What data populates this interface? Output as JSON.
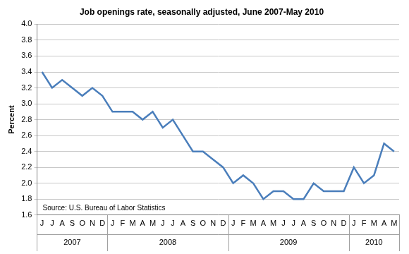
{
  "chart_data": {
    "type": "line",
    "title": "Job openings rate, seasonally adjusted, June 2007-May 2010",
    "y_label": "Percent",
    "annotation": "Source: U.S. Bureau of Labor Statistics",
    "categories": [
      "J",
      "J",
      "A",
      "S",
      "O",
      "N",
      "D",
      "J",
      "F",
      "M",
      "A",
      "M",
      "J",
      "J",
      "A",
      "S",
      "O",
      "N",
      "D",
      "J",
      "F",
      "M",
      "A",
      "M",
      "J",
      "J",
      "A",
      "S",
      "O",
      "N",
      "D",
      "J",
      "F",
      "M",
      "A",
      "M"
    ],
    "years": [
      "2007",
      "2007",
      "2007",
      "2007",
      "2007",
      "2007",
      "2007",
      "2008",
      "2008",
      "2008",
      "2008",
      "2008",
      "2008",
      "2008",
      "2008",
      "2008",
      "2008",
      "2008",
      "2008",
      "2009",
      "2009",
      "2009",
      "2009",
      "2009",
      "2009",
      "2009",
      "2009",
      "2009",
      "2009",
      "2009",
      "2009",
      "2010",
      "2010",
      "2010",
      "2010",
      "2010"
    ],
    "values": [
      3.4,
      3.2,
      3.3,
      3.2,
      3.1,
      3.2,
      3.1,
      2.9,
      2.9,
      2.9,
      2.8,
      2.9,
      2.7,
      2.8,
      2.6,
      2.4,
      2.4,
      2.3,
      2.2,
      2.0,
      2.1,
      2.0,
      1.8,
      1.9,
      1.9,
      1.8,
      1.8,
      2.0,
      1.9,
      1.9,
      1.9,
      2.2,
      2.0,
      2.1,
      2.5,
      2.4
    ],
    "color": "#4a7ebb",
    "marker": "none",
    "line_style": "solid",
    "ylim": [
      1.6,
      4.0
    ],
    "yticks": [
      1.6,
      1.8,
      {
        "value": 2,
        "label": "2.0"
      },
      2.2,
      2.4,
      2.6,
      2.8,
      {
        "value": 3,
        "label": "3.0"
      },
      3.2,
      3.4,
      3.6,
      3.8,
      {
        "value": 4,
        "label": "4.0"
      }
    ],
    "grid": true
  }
}
